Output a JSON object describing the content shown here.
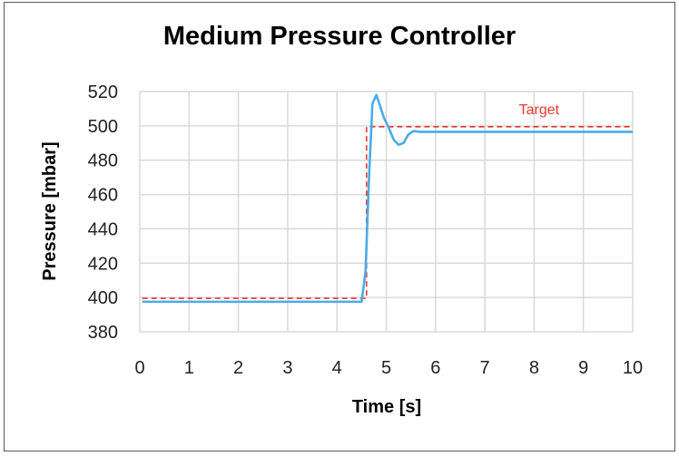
{
  "chart_data": {
    "type": "line",
    "title": "Medium Pressure Controller",
    "xlabel": "Time [s]",
    "ylabel": "Pressure [mbar]",
    "xlim": [
      0,
      10
    ],
    "ylim": [
      380,
      520
    ],
    "xticks": [
      0,
      1,
      2,
      3,
      4,
      5,
      6,
      7,
      8,
      9,
      10
    ],
    "yticks": [
      380,
      400,
      420,
      440,
      460,
      480,
      500,
      520
    ],
    "grid": true,
    "legend": "none",
    "annotations": [
      {
        "text": "Target",
        "x": 8.1,
        "y": 510,
        "color": "#e8392f"
      }
    ],
    "series": [
      {
        "name": "Pressure",
        "color": "#4aabe8",
        "style": "solid",
        "x": [
          0.05,
          4.5,
          4.58,
          4.65,
          4.72,
          4.8,
          4.87,
          4.95,
          5.05,
          5.15,
          5.25,
          5.35,
          5.45,
          5.55,
          5.7,
          6.0,
          10.0
        ],
        "y": [
          397.5,
          397.5,
          415,
          470,
          513,
          518,
          512,
          505,
          499,
          492,
          489,
          490,
          495,
          497,
          496.5,
          496.5,
          496.5
        ]
      },
      {
        "name": "Target",
        "color": "#e8392f",
        "style": "dashed",
        "x": [
          0.05,
          4.6,
          4.6,
          10.0
        ],
        "y": [
          399.5,
          399.5,
          499.5,
          499.5
        ]
      }
    ]
  }
}
